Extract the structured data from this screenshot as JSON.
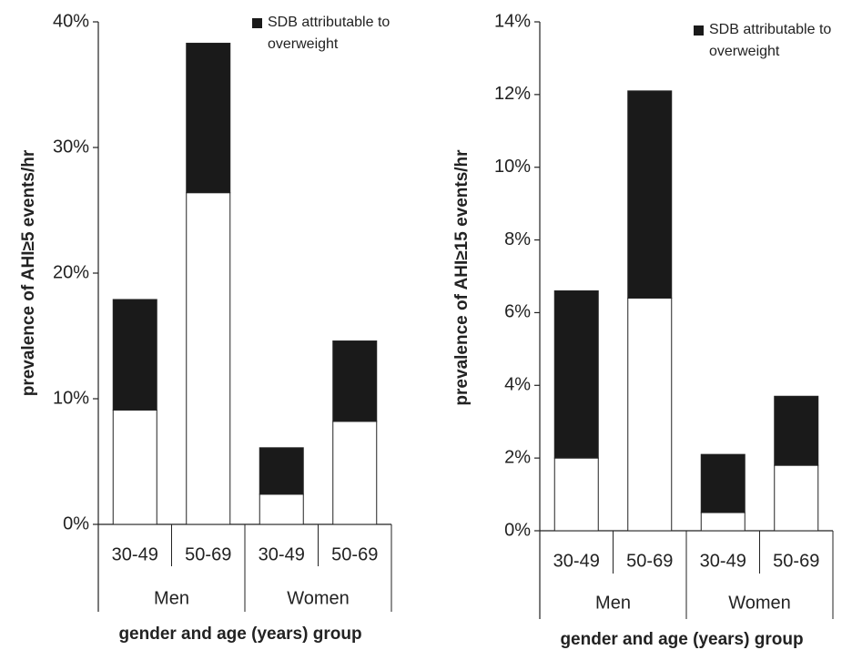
{
  "chart_data": [
    {
      "type": "stacked-bar",
      "ylabel": "prevalence of AHI≥5 events/hr",
      "xlabel": "gender and age (years) group",
      "categories": [
        "30-49",
        "50-69",
        "30-49",
        "50-69"
      ],
      "groups": [
        "Men",
        "Women"
      ],
      "series": [
        {
          "color": "#ffffff",
          "values": [
            9.1,
            26.4,
            2.4,
            8.2
          ]
        },
        {
          "name": "SDB attributable to overweight",
          "color": "#1a1a1a",
          "values": [
            8.8,
            11.9,
            3.7,
            6.4
          ]
        }
      ],
      "ylim": [
        0,
        40
      ],
      "yticks": [
        {
          "value": 0,
          "label": "0%"
        },
        {
          "value": 10,
          "label": "10%"
        },
        {
          "value": 20,
          "label": "20%"
        },
        {
          "value": 30,
          "label": "30%"
        },
        {
          "value": 40,
          "label": "40%"
        }
      ],
      "legend": "upper right"
    },
    {
      "type": "stacked-bar",
      "ylabel": "prevalence of AHI≥15 events/hr",
      "xlabel": "gender and age (years) group",
      "categories": [
        "30-49",
        "50-69",
        "30-49",
        "50-69"
      ],
      "groups": [
        "Men",
        "Women"
      ],
      "series": [
        {
          "color": "#ffffff",
          "values": [
            2.0,
            6.4,
            0.5,
            1.8
          ]
        },
        {
          "name": "SDB attributable to overweight",
          "color": "#1a1a1a",
          "values": [
            4.6,
            5.7,
            1.6,
            1.9
          ]
        }
      ],
      "ylim": [
        0,
        14
      ],
      "yticks": [
        {
          "value": 0,
          "label": "0%"
        },
        {
          "value": 2,
          "label": "2%"
        },
        {
          "value": 4,
          "label": "4%"
        },
        {
          "value": 6,
          "label": "6%"
        },
        {
          "value": 8,
          "label": "8%"
        },
        {
          "value": 10,
          "label": "10%"
        },
        {
          "value": 12,
          "label": "12%"
        },
        {
          "value": 14,
          "label": "14%"
        }
      ],
      "legend": "upper right"
    }
  ]
}
